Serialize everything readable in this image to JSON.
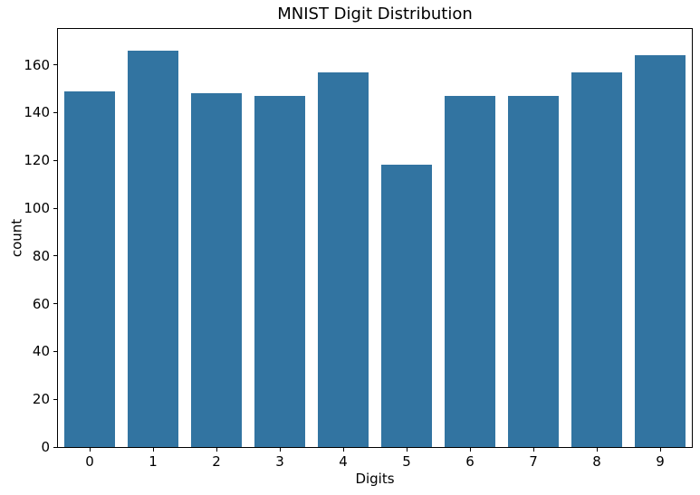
{
  "figure": {
    "background_color": "#ffffff",
    "text_color": "#000000",
    "axis_color": "#000000"
  },
  "chart_data": {
    "type": "bar",
    "title": "MNIST Digit Distribution",
    "xlabel": "Digits",
    "ylabel": "count",
    "categories": [
      "0",
      "1",
      "2",
      "3",
      "4",
      "5",
      "6",
      "7",
      "8",
      "9"
    ],
    "values": [
      149,
      166,
      148,
      147,
      157,
      118,
      147,
      147,
      157,
      164
    ],
    "yticks": [
      0,
      20,
      40,
      60,
      80,
      100,
      120,
      140,
      160
    ],
    "ylim": [
      0,
      175
    ],
    "bar_color": "#3274a1",
    "bar_width_fraction": 0.8,
    "grid": false,
    "legend_position": "none"
  }
}
